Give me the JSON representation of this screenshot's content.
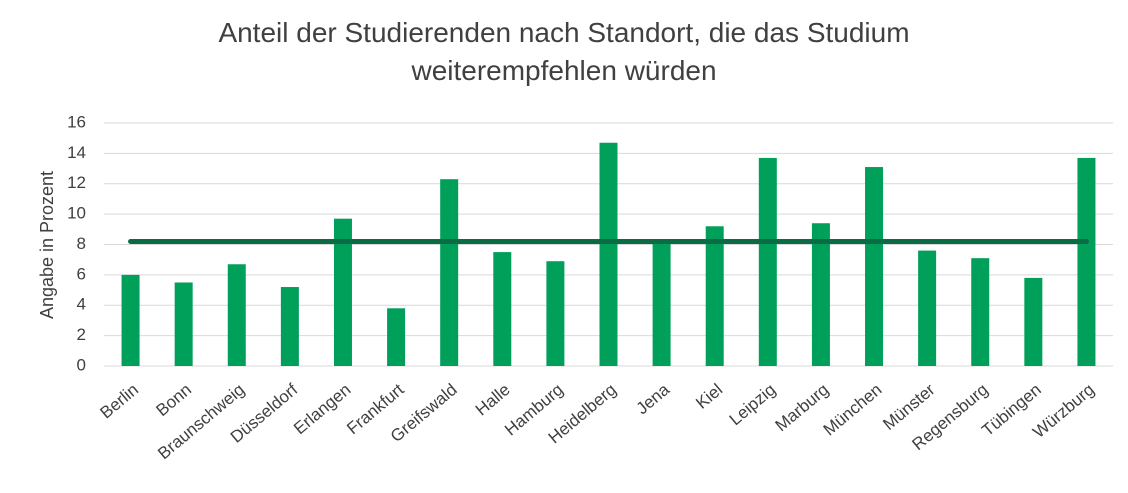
{
  "chart_data": {
    "type": "bar",
    "title_lines": [
      "Anteil der Studierenden nach Standort, die das Studium",
      "weiterempfehlen würden"
    ],
    "xlabel": "",
    "ylabel": "Angabe in Prozent",
    "ylim": [
      0,
      16
    ],
    "yticks": [
      0,
      2,
      4,
      6,
      8,
      10,
      12,
      14,
      16
    ],
    "grid": true,
    "legend": "none",
    "categories": [
      "Berlin",
      "Bonn",
      "Braunschweig",
      "Düsseldorf",
      "Erlangen",
      "Frankfurt",
      "Greifswald",
      "Halle",
      "Hamburg",
      "Heidelberg",
      "Jena",
      "Kiel",
      "Leipzig",
      "Marburg",
      "München",
      "Münster",
      "Regensburg",
      "Tübingen",
      "Würzburg"
    ],
    "series": [
      {
        "type": "bar",
        "color": "#00A05A",
        "values": [
          6.0,
          5.5,
          6.7,
          5.2,
          9.7,
          3.8,
          12.3,
          7.5,
          6.9,
          14.7,
          8.2,
          9.2,
          13.7,
          9.4,
          13.1,
          7.6,
          7.1,
          5.8,
          13.7
        ]
      },
      {
        "type": "line",
        "color": "#0B6B45",
        "values": [
          8.2,
          8.2,
          8.2,
          8.2,
          8.2,
          8.2,
          8.2,
          8.2,
          8.2,
          8.2,
          8.2,
          8.2,
          8.2,
          8.2,
          8.2,
          8.2,
          8.2,
          8.2,
          8.2
        ]
      }
    ]
  }
}
